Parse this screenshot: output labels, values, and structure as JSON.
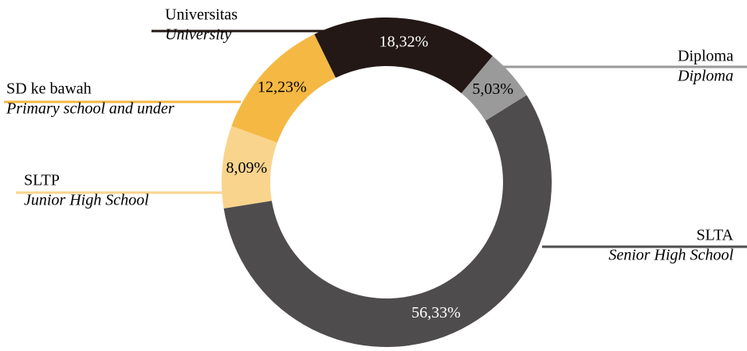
{
  "chart_data": {
    "type": "donut",
    "categories": [
      "Universitas",
      "Diploma",
      "SLTA",
      "SLTP",
      "SD ke bawah"
    ],
    "category_translations": [
      "University",
      "Diploma",
      "Senior High School",
      "Junior High School",
      "Primary school and under"
    ],
    "values": [
      18.32,
      5.03,
      56.33,
      8.09,
      12.23
    ],
    "value_labels": [
      "18,32%",
      "5,03%",
      "56,33%",
      "8,09%",
      "12,23%"
    ],
    "colors": [
      "#231815",
      "#9b9a9a",
      "#4f4c4d",
      "#f9d48d",
      "#f4b843"
    ]
  }
}
